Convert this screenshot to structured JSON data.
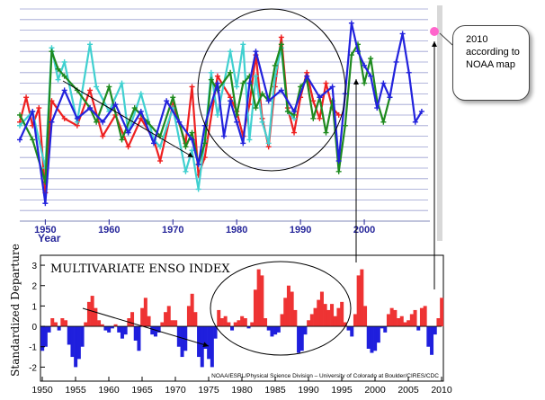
{
  "chart_data": [
    {
      "type": "line",
      "xlabel": "Year",
      "ylabel": "",
      "xlim": [
        1946,
        2010
      ],
      "x_ticks": [
        1950,
        1960,
        1970,
        1980,
        1990,
        2000
      ],
      "grid": "horizontal",
      "colors": {
        "red": "#ee2020",
        "cyan": "#40d0d0",
        "green": "#1e8a1e",
        "blue": "#2222dd"
      },
      "series": [
        {
          "color": "red",
          "x": [
            1946,
            1947,
            1948,
            1949,
            1950,
            1951,
            1953,
            1955,
            1957,
            1959,
            1961,
            1963,
            1965,
            1967,
            1968,
            1970,
            1972,
            1973,
            1974,
            1975,
            1977,
            1979,
            1980,
            1981,
            1982,
            1983,
            1984,
            1985,
            1986,
            1987,
            1988,
            1989,
            1990,
            1991,
            1992,
            1993,
            1994,
            1995,
            1996
          ],
          "y": [
            0.2,
            0.9,
            0.1,
            0.6,
            -1.8,
            0.8,
            0.3,
            0.1,
            1.1,
            -0.2,
            0.4,
            -0.5,
            0.3,
            -0.3,
            -0.9,
            0.7,
            -0.4,
            1.2,
            -1.3,
            -0.8,
            1.5,
            0.9,
            0.5,
            -0.2,
            0.7,
            2.1,
            0.3,
            -0.5,
            1.2,
            2.6,
            0.6,
            -0.1,
            0.9,
            1.6,
            0.8,
            0.3,
            1.3,
            0.6,
            0.4
          ]
        },
        {
          "color": "cyan",
          "x": [
            1946,
            1948,
            1950,
            1951,
            1952,
            1953,
            1955,
            1957,
            1958,
            1960,
            1962,
            1963,
            1965,
            1967,
            1968,
            1970,
            1972,
            1973,
            1974,
            1975,
            1976,
            1977,
            1979,
            1980,
            1981,
            1982,
            1983,
            1984,
            1985,
            1986,
            1987,
            1988,
            1989
          ],
          "y": [
            0.1,
            0.5,
            -1.1,
            2.3,
            1.4,
            1.9,
            0.2,
            2.4,
            1.2,
            0.5,
            1.3,
            -0.1,
            1.0,
            -0.3,
            -0.5,
            0.6,
            -1.2,
            -0.6,
            -1.7,
            -0.3,
            1.6,
            0.4,
            2.2,
            1.2,
            2.4,
            -0.3,
            1.5,
            0.2,
            -0.4,
            1.5,
            2.3,
            0.5,
            0.3
          ]
        },
        {
          "color": "green",
          "x": [
            1946,
            1948,
            1950,
            1951,
            1952,
            1953,
            1955,
            1957,
            1958,
            1960,
            1962,
            1964,
            1966,
            1968,
            1970,
            1972,
            1973,
            1974,
            1975,
            1976,
            1977,
            1979,
            1980,
            1981,
            1982,
            1983,
            1984,
            1985,
            1986,
            1987,
            1988,
            1989,
            1990,
            1991,
            1992,
            1993,
            1994,
            1995,
            1996,
            1997,
            1998,
            1999,
            2000,
            2001,
            2002,
            2003,
            2004
          ],
          "y": [
            0.4,
            -0.3,
            -1.5,
            2.2,
            1.7,
            1.5,
            1.1,
            0.6,
            0.2,
            1.2,
            -0.3,
            0.6,
            0.2,
            -0.2,
            0.9,
            -0.5,
            -0.1,
            -1.0,
            -0.4,
            1.4,
            1.1,
            1.6,
            0.4,
            1.3,
            1.5,
            0.6,
            1.0,
            0.8,
            1.8,
            2.4,
            0.5,
            0.4,
            1.2,
            1.4,
            0.3,
            0.9,
            -0.1,
            0.8,
            -1.2,
            0.1,
            2.1,
            2.4,
            1.3,
            2.0,
            0.8,
            0.2,
            0.9
          ]
        },
        {
          "color": "blue",
          "x": [
            1946,
            1948,
            1950,
            1951,
            1953,
            1955,
            1957,
            1959,
            1961,
            1963,
            1965,
            1967,
            1969,
            1971,
            1973,
            1974,
            1975,
            1977,
            1978,
            1979,
            1980,
            1981,
            1982,
            1983,
            1985,
            1987,
            1989,
            1991,
            1993,
            1995,
            1996,
            1997,
            1998,
            1999,
            2000,
            2001,
            2002,
            2003,
            2004,
            2005,
            2006,
            2007,
            2008,
            2009
          ],
          "y": [
            -0.3,
            0.5,
            -2.1,
            0.2,
            1.1,
            0.3,
            0.6,
            0.2,
            0.7,
            -0.1,
            0.5,
            -0.4,
            0.8,
            0.2,
            -0.3,
            -1.0,
            0.1,
            1.3,
            -0.2,
            0.8,
            0.2,
            -0.4,
            1.3,
            2.2,
            0.8,
            1.1,
            0.5,
            1.5,
            0.9,
            1.2,
            -0.9,
            1.0,
            3.0,
            2.2,
            1.8,
            1.5,
            0.6,
            1.3,
            0.9,
            1.9,
            2.7,
            1.6,
            0.2,
            0.5
          ]
        }
      ],
      "marker": {
        "year": 2010,
        "color": "#ff66cc"
      }
    },
    {
      "type": "area",
      "title": "MULTIVARIATE ENSO INDEX",
      "ylabel": "Standardized Departure",
      "xlabel": "",
      "ylim": [
        -2.6,
        3.4
      ],
      "y_ticks": [
        -2,
        -1,
        0,
        1,
        2,
        3
      ],
      "xlim": [
        1950,
        2010
      ],
      "x_ticks": [
        1950,
        1955,
        1960,
        1965,
        1970,
        1975,
        1980,
        1985,
        1990,
        1995,
        2000,
        2005,
        2010
      ],
      "credit": "NOAA/ESRL/Physical Science Division – University of Colorado at Boulder/CIRES/CDC",
      "colors": {
        "positive": "#ee3333",
        "negative": "#1f1fdd"
      },
      "x": [
        1950,
        1950.5,
        1951,
        1951.5,
        1952,
        1952.5,
        1953,
        1953.5,
        1954,
        1954.5,
        1955,
        1955.5,
        1956,
        1956.5,
        1957,
        1957.5,
        1958,
        1958.5,
        1959,
        1959.5,
        1960,
        1960.5,
        1961,
        1961.5,
        1962,
        1962.5,
        1963,
        1963.5,
        1964,
        1964.5,
        1965,
        1965.5,
        1966,
        1966.5,
        1967,
        1967.5,
        1968,
        1968.5,
        1969,
        1969.5,
        1970,
        1970.5,
        1971,
        1971.5,
        1972,
        1972.5,
        1973,
        1973.5,
        1974,
        1974.5,
        1975,
        1975.5,
        1976,
        1976.5,
        1977,
        1977.5,
        1978,
        1978.5,
        1979,
        1979.5,
        1980,
        1980.5,
        1981,
        1981.5,
        1982,
        1982.5,
        1983,
        1983.5,
        1984,
        1984.5,
        1985,
        1985.5,
        1986,
        1986.5,
        1987,
        1987.5,
        1988,
        1988.5,
        1989,
        1989.5,
        1990,
        1990.5,
        1991,
        1991.5,
        1992,
        1992.5,
        1993,
        1993.5,
        1994,
        1994.5,
        1995,
        1995.5,
        1996,
        1996.5,
        1997,
        1997.5,
        1998,
        1998.5,
        1999,
        1999.5,
        2000,
        2000.5,
        2001,
        2001.5,
        2002,
        2002.5,
        2003,
        2003.5,
        2004,
        2004.5,
        2005,
        2005.5,
        2006,
        2006.5,
        2007,
        2007.5,
        2008,
        2008.5,
        2009,
        2009.5,
        2010
      ],
      "values": [
        -1.2,
        -1.0,
        -0.3,
        0.4,
        0.2,
        -0.2,
        0.4,
        0.3,
        -0.9,
        -1.5,
        -2.0,
        -1.6,
        -1.0,
        0.2,
        1.2,
        1.5,
        0.9,
        0.3,
        0.1,
        -0.2,
        -0.3,
        -0.1,
        0.1,
        -0.3,
        -0.6,
        -0.4,
        0.4,
        0.7,
        -0.7,
        -1.2,
        0.9,
        1.4,
        0.5,
        -0.4,
        -0.5,
        -0.3,
        0.2,
        0.7,
        1.0,
        0.3,
        0.3,
        -1.0,
        -1.5,
        -1.2,
        1.0,
        1.6,
        0.7,
        -1.5,
        -2.0,
        -1.1,
        -1.6,
        -2.0,
        -0.6,
        0.8,
        0.4,
        0.5,
        0.2,
        -0.2,
        0.2,
        0.3,
        0.5,
        0.4,
        -0.1,
        0.2,
        1.8,
        2.8,
        2.5,
        0.4,
        -0.2,
        -0.5,
        -0.4,
        -0.3,
        0.6,
        1.4,
        2.0,
        1.7,
        0.8,
        -1.3,
        -1.2,
        -0.4,
        0.3,
        0.6,
        0.9,
        1.3,
        1.7,
        1.1,
        0.8,
        1.1,
        0.5,
        0.9,
        1.2,
        0.2,
        -0.2,
        -0.5,
        0.6,
        2.5,
        2.8,
        1.0,
        -1.1,
        -1.3,
        -1.2,
        -0.8,
        -0.1,
        -0.3,
        0.6,
        0.9,
        0.8,
        0.4,
        0.5,
        0.2,
        0.3,
        0.6,
        0.8,
        -0.2,
        0.9,
        1.0,
        -1.0,
        -1.4,
        -0.4,
        0.4,
        1.4
      ]
    }
  ],
  "callout": {
    "lines": [
      "2010",
      "according to",
      "NOAA map"
    ]
  }
}
